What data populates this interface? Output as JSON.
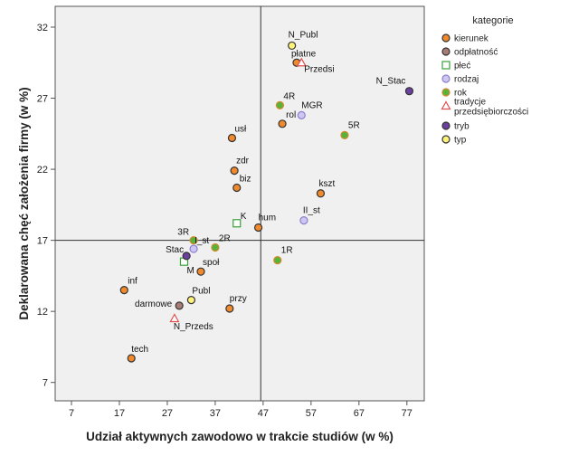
{
  "chart_data": {
    "type": "scatter",
    "xlabel": "Udział aktywnych zawodowo w trakcie studiów (w %)",
    "ylabel": "Deklarowana chęć założenia firmy (w %)",
    "xlim": [
      2,
      83
    ],
    "ylim": [
      5,
      34.5
    ],
    "xticks": [
      7,
      17,
      27,
      37,
      47,
      57,
      67,
      77
    ],
    "yticks": [
      7,
      12,
      17,
      22,
      27,
      32
    ],
    "reference_lines": {
      "x": 46.5,
      "y": 17
    },
    "grid": false,
    "legend": {
      "title": "kategorie",
      "position": "right",
      "entries": [
        {
          "name": "kierunek",
          "marker": "circle",
          "fill": "#f08a2c",
          "stroke": "#333333"
        },
        {
          "name": "odpłatność",
          "marker": "circle",
          "fill": "#a87c74",
          "stroke": "#333333"
        },
        {
          "name": "płeć",
          "marker": "square",
          "fill": "#ffffff",
          "stroke": "#3aa03a"
        },
        {
          "name": "rodzaj",
          "marker": "circle",
          "fill": "#cfc6f2",
          "stroke": "#8a7fcf"
        },
        {
          "name": "rok",
          "marker": "circle",
          "fill": "#57b33a",
          "stroke": "#d48a2a"
        },
        {
          "name": "tradycje przedsiębiorczości",
          "marker": "triangle",
          "fill": "#ffffff",
          "stroke": "#e05050"
        },
        {
          "name": "tryb",
          "marker": "circle",
          "fill": "#6a3fa0",
          "stroke": "#333333"
        },
        {
          "name": "typ",
          "marker": "circle",
          "fill": "#fdf27a",
          "stroke": "#333333"
        }
      ]
    },
    "series": [
      {
        "name": "kierunek",
        "points": [
          {
            "label": "tech",
            "x": 19.5,
            "y": 8.7
          },
          {
            "label": "inf",
            "x": 18,
            "y": 13.5
          },
          {
            "label": "przy",
            "x": 40,
            "y": 12.2
          },
          {
            "label": "społ",
            "x": 34,
            "y": 14.8
          },
          {
            "label": "hum",
            "x": 46,
            "y": 17.9
          },
          {
            "label": "biz",
            "x": 41.5,
            "y": 20.7
          },
          {
            "label": "zdr",
            "x": 41,
            "y": 21.9
          },
          {
            "label": "usł",
            "x": 40.5,
            "y": 24.2
          },
          {
            "label": "rol",
            "x": 51,
            "y": 25.2
          },
          {
            "label": "kszt",
            "x": 59,
            "y": 20.3
          },
          {
            "label": "płatne",
            "x": 54,
            "y": 29.5
          }
        ]
      },
      {
        "name": "odpłatność",
        "points": [
          {
            "label": "darmowe",
            "x": 29.5,
            "y": 12.4
          }
        ]
      },
      {
        "name": "płeć",
        "points": [
          {
            "label": "K",
            "x": 41.5,
            "y": 18.2
          },
          {
            "label": "M",
            "x": 30.5,
            "y": 15.5
          }
        ]
      },
      {
        "name": "rodzaj",
        "points": [
          {
            "label": "MGR",
            "x": 55,
            "y": 25.8
          },
          {
            "label": "II_st",
            "x": 55.5,
            "y": 18.4
          },
          {
            "label": "I_st",
            "x": 32.5,
            "y": 16.4
          }
        ]
      },
      {
        "name": "rok",
        "points": [
          {
            "label": "4R",
            "x": 50.5,
            "y": 26.5
          },
          {
            "label": "5R",
            "x": 64,
            "y": 24.4
          },
          {
            "label": "1R",
            "x": 50,
            "y": 15.6
          },
          {
            "label": "3R",
            "x": 32.5,
            "y": 17
          },
          {
            "label": "2R",
            "x": 37,
            "y": 16.5
          }
        ]
      },
      {
        "name": "tradycje przedsiębiorczości",
        "points": [
          {
            "label": "Przedsi",
            "x": 55,
            "y": 29.5
          },
          {
            "label": "N_Przeds",
            "x": 28.5,
            "y": 11.5
          }
        ]
      },
      {
        "name": "tryb",
        "points": [
          {
            "label": "N_Stac",
            "x": 77.5,
            "y": 27.5
          },
          {
            "label": "Stac",
            "x": 31,
            "y": 15.9
          }
        ]
      },
      {
        "name": "typ",
        "points": [
          {
            "label": "N_Publ",
            "x": 53,
            "y": 30.7
          },
          {
            "label": "Publ",
            "x": 32,
            "y": 12.8
          }
        ]
      }
    ]
  }
}
